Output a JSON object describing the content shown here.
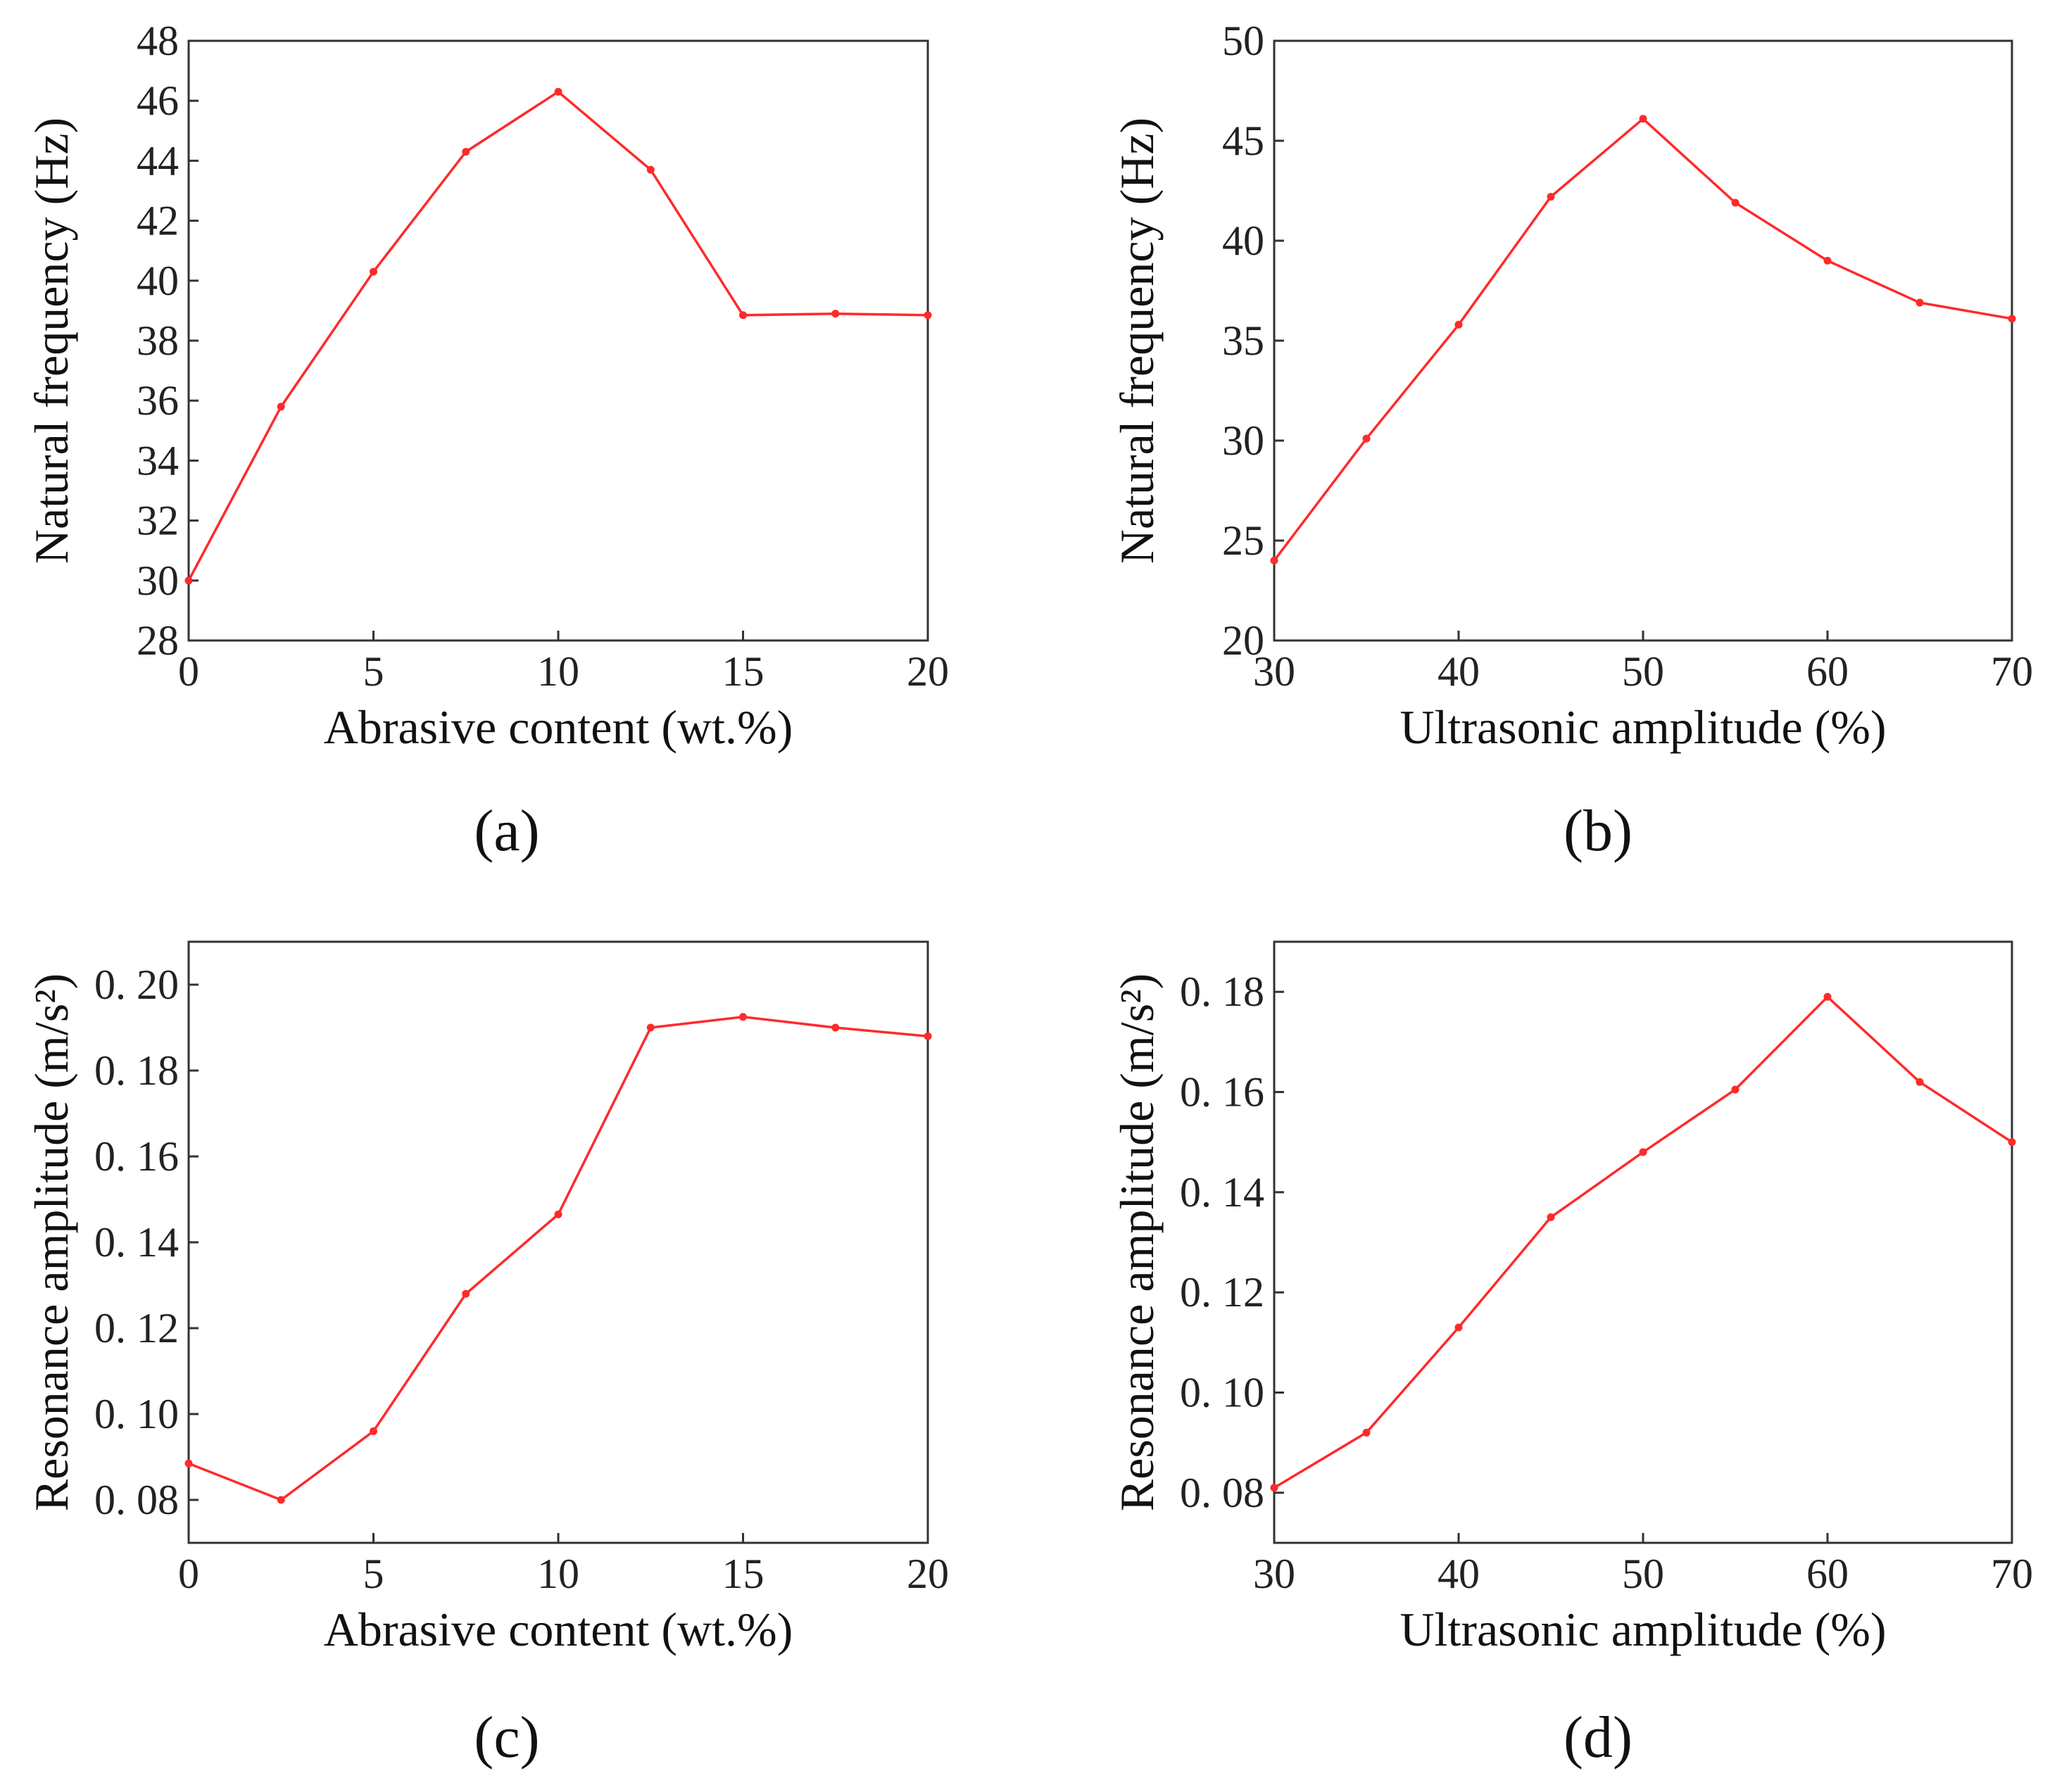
{
  "chart_data": [
    {
      "panel": "(a)",
      "type": "line",
      "xlabel": "Abrasive content (wt.%)",
      "ylabel": "Natural frequency (Hz)",
      "xlim": [
        0,
        20
      ],
      "ylim": [
        28,
        48
      ],
      "xticks": [
        0,
        5,
        10,
        15,
        20
      ],
      "xtick_labels": [
        "0",
        "5",
        "10",
        "15",
        "20"
      ],
      "yticks": [
        28,
        30,
        32,
        34,
        36,
        38,
        40,
        42,
        44,
        46,
        48
      ],
      "ytick_labels": [
        "28",
        "30",
        "32",
        "34",
        "36",
        "38",
        "40",
        "42",
        "44",
        "46",
        "48"
      ],
      "grid": false,
      "series": [
        {
          "name": "Natural frequency",
          "color": "#ff2a2a",
          "x": [
            0,
            2.5,
            5,
            7.5,
            10,
            12.5,
            15,
            17.5,
            20
          ],
          "y": [
            30.0,
            35.8,
            40.3,
            44.3,
            46.3,
            43.7,
            38.85,
            38.9,
            38.85
          ]
        }
      ]
    },
    {
      "panel": "(b)",
      "type": "line",
      "xlabel": "Ultrasonic amplitude (%)",
      "ylabel": "Natural frequency (Hz)",
      "xlim": [
        30,
        70
      ],
      "ylim": [
        20,
        50
      ],
      "xticks": [
        30,
        40,
        50,
        60,
        70
      ],
      "xtick_labels": [
        "30",
        "40",
        "50",
        "60",
        "70"
      ],
      "yticks": [
        20,
        25,
        30,
        35,
        40,
        45,
        50
      ],
      "ytick_labels": [
        "20",
        "25",
        "30",
        "35",
        "40",
        "45",
        "50"
      ],
      "grid": false,
      "series": [
        {
          "name": "Natural frequency",
          "color": "#ff2a2a",
          "x": [
            30,
            35,
            40,
            45,
            50,
            55,
            60,
            65,
            70
          ],
          "y": [
            24.0,
            30.1,
            35.8,
            42.2,
            46.1,
            41.9,
            39.0,
            36.9,
            36.1
          ]
        }
      ]
    },
    {
      "panel": "(c)",
      "type": "line",
      "xlabel": "Abrasive content (wt.%)",
      "ylabel": "Resonance amplitude (m/s²)",
      "xlim": [
        0,
        20
      ],
      "ylim": [
        0.07,
        0.21
      ],
      "xticks": [
        0,
        5,
        10,
        15,
        20
      ],
      "xtick_labels": [
        "0",
        "5",
        "10",
        "15",
        "20"
      ],
      "yticks": [
        0.08,
        0.1,
        0.12,
        0.14,
        0.16,
        0.18,
        0.2
      ],
      "ytick_labels": [
        "0. 08",
        "0. 10",
        "0. 12",
        "0. 14",
        "0. 16",
        "0. 18",
        "0. 20"
      ],
      "grid": false,
      "series": [
        {
          "name": "Resonance amplitude",
          "color": "#ff2a2a",
          "x": [
            0,
            2.5,
            5,
            7.5,
            10,
            12.5,
            15,
            17.5,
            20
          ],
          "y": [
            0.0885,
            0.08,
            0.096,
            0.128,
            0.1465,
            0.19,
            0.1925,
            0.19,
            0.188
          ]
        }
      ]
    },
    {
      "panel": "(d)",
      "type": "line",
      "xlabel": "Ultrasonic amplitude (%)",
      "ylabel": "Resonance amplitude (m/s²)",
      "xlim": [
        30,
        70
      ],
      "ylim": [
        0.07,
        0.19
      ],
      "xticks": [
        30,
        40,
        50,
        60,
        70
      ],
      "xtick_labels": [
        "30",
        "40",
        "50",
        "60",
        "70"
      ],
      "yticks": [
        0.08,
        0.1,
        0.12,
        0.14,
        0.16,
        0.18
      ],
      "ytick_labels": [
        "0. 08",
        "0. 10",
        "0. 12",
        "0. 14",
        "0. 16",
        "0. 18"
      ],
      "grid": false,
      "series": [
        {
          "name": "Resonance amplitude",
          "color": "#ff2a2a",
          "x": [
            30,
            35,
            40,
            45,
            50,
            55,
            60,
            65,
            70
          ],
          "y": [
            0.081,
            0.092,
            0.113,
            0.135,
            0.148,
            0.1605,
            0.179,
            0.162,
            0.15
          ]
        }
      ]
    }
  ]
}
